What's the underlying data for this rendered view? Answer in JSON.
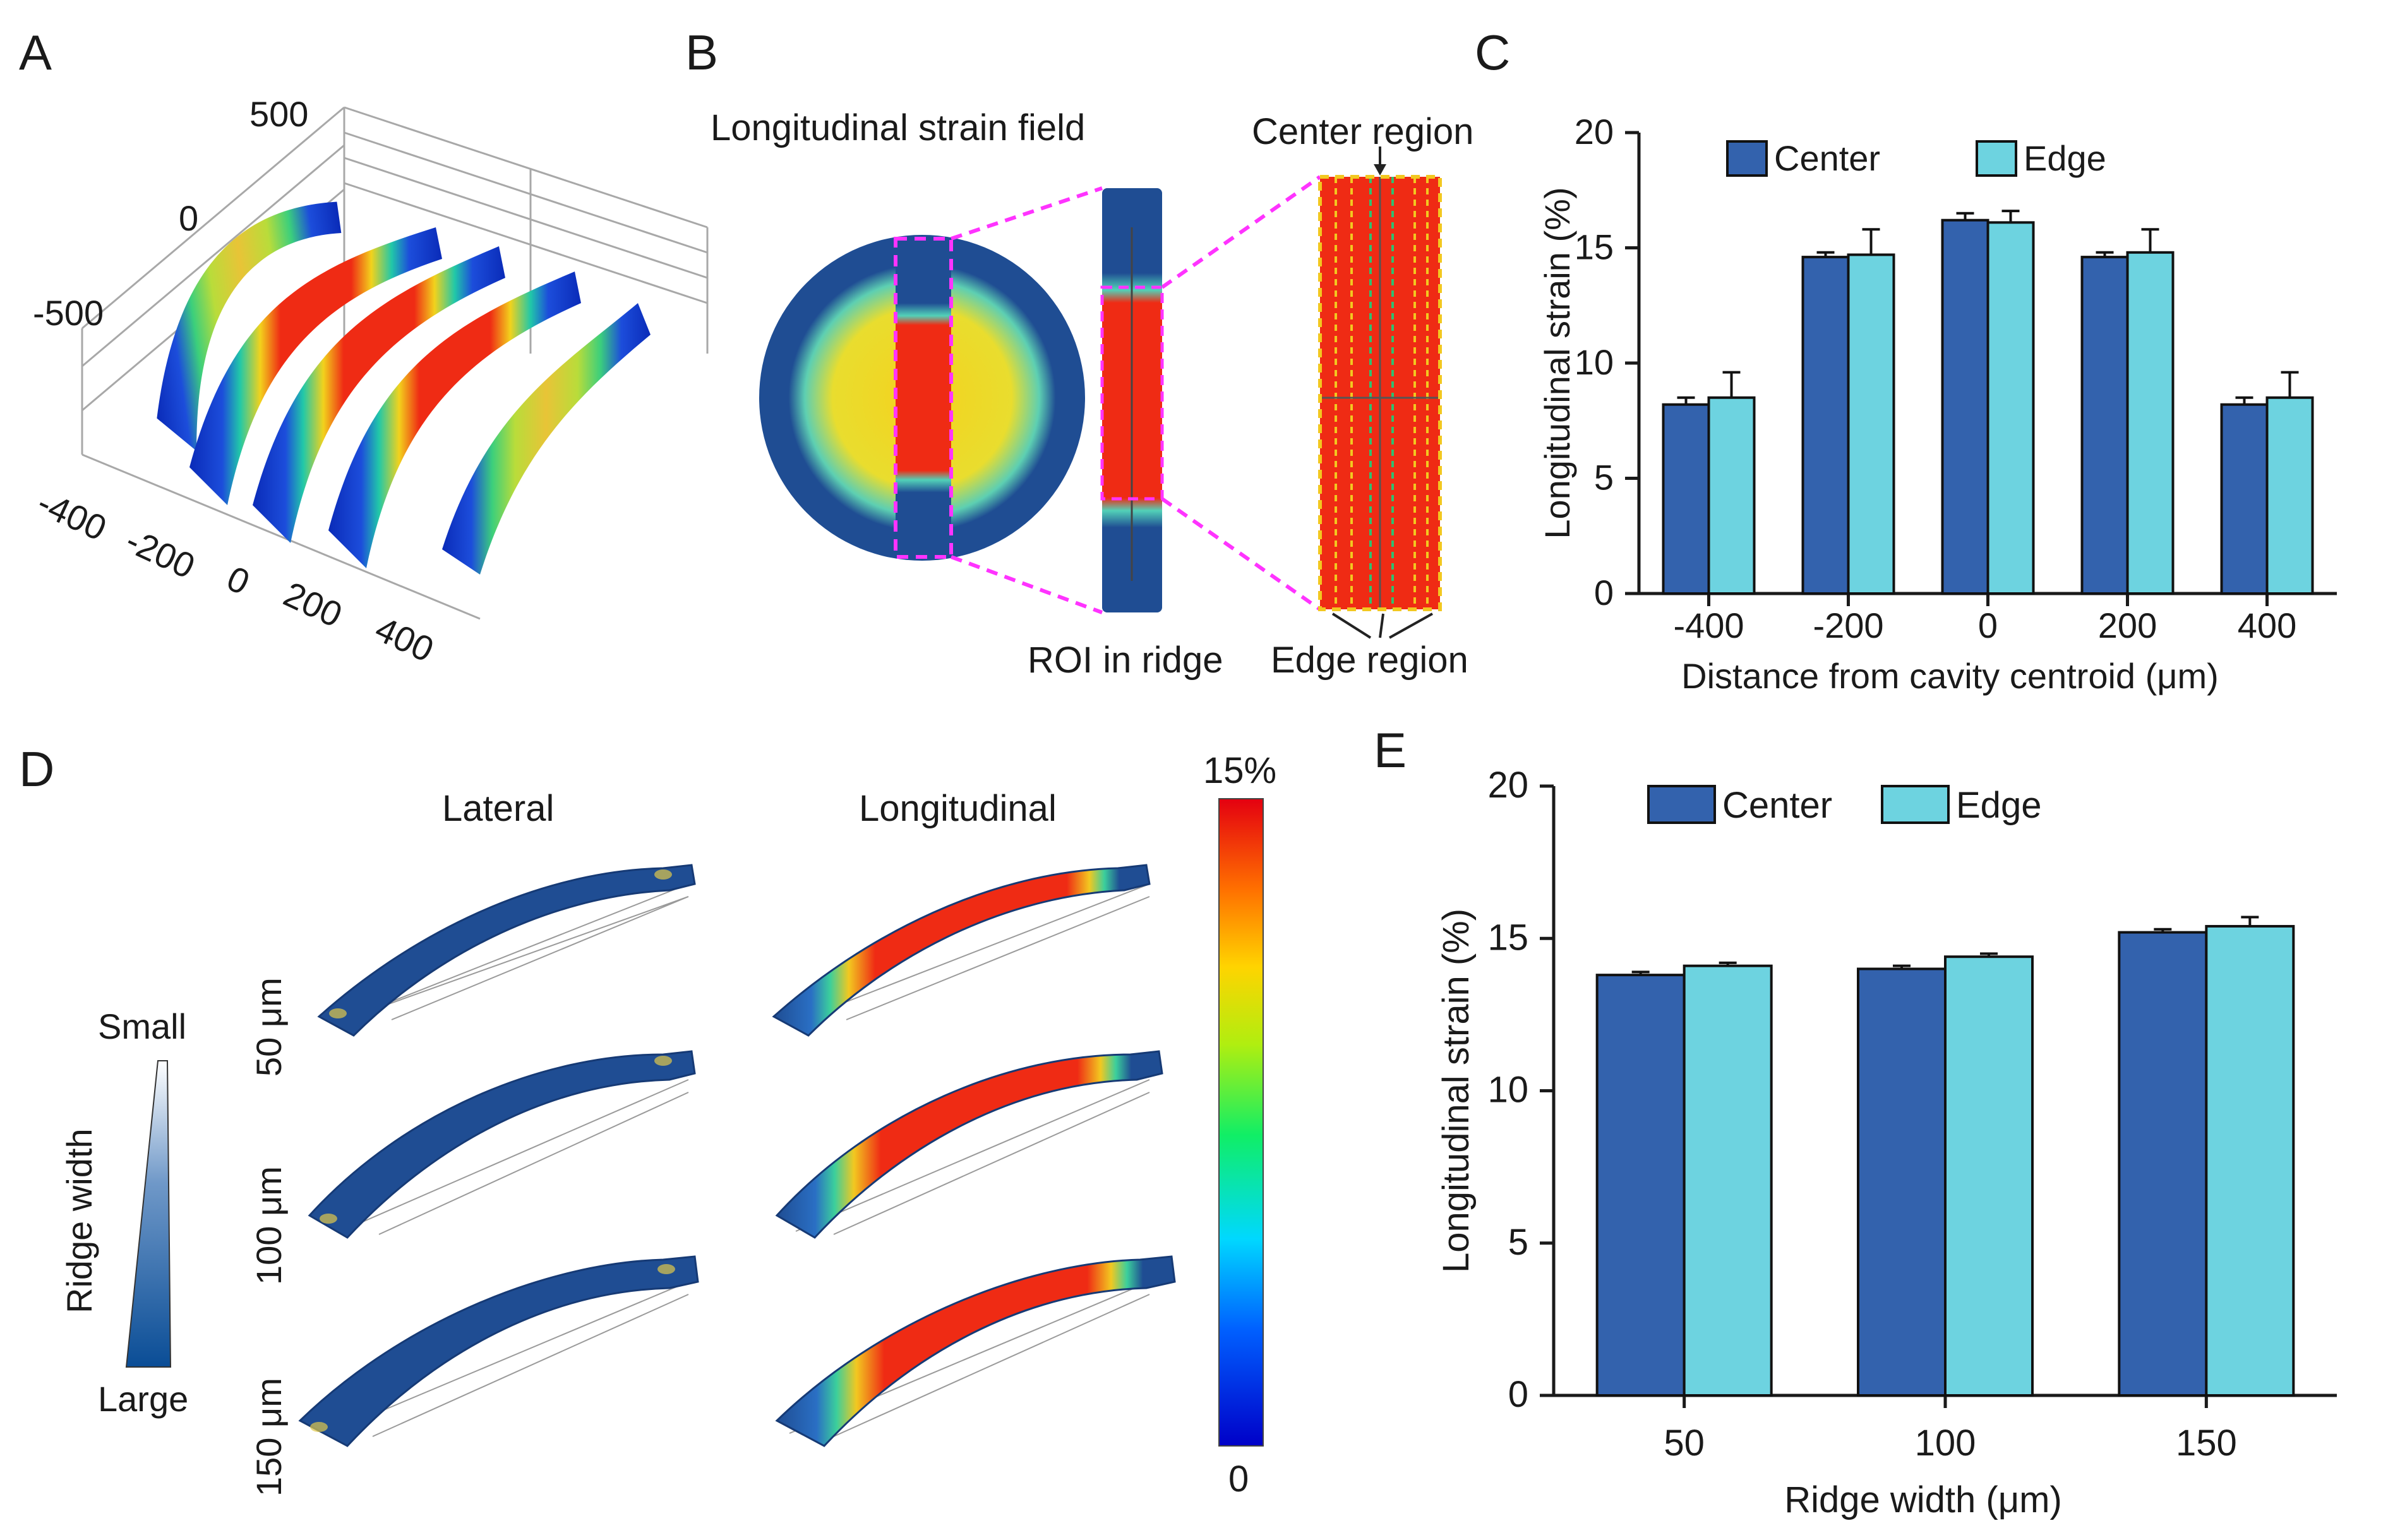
{
  "panels": {
    "a": {
      "label": "A",
      "zticks": [
        "500",
        "0",
        "-500"
      ],
      "xticks": [
        "-400",
        "-200",
        "0",
        "200",
        "400"
      ]
    },
    "b": {
      "label": "B",
      "title": "Longitudinal strain field",
      "center_region": "Center region",
      "roi": "ROI in ridge",
      "edge_region": "Edge region"
    },
    "c": {
      "label": "C"
    },
    "d": {
      "label": "D",
      "col_lateral": "Lateral",
      "col_longitudinal": "Longitudinal",
      "rows": [
        "50 μm",
        "100 μm",
        "150 μm"
      ],
      "ridge_width": "Ridge width",
      "small": "Small",
      "large": "Large",
      "cbar_max": "15%",
      "cbar_min": "0"
    },
    "e": {
      "label": "E"
    }
  },
  "colors": {
    "center": "#3362ad",
    "edge": "#6dd3e0",
    "magenta": "#ff33ff"
  },
  "chart_data": [
    {
      "id": "C",
      "type": "bar",
      "categories": [
        "-400",
        "-200",
        "0",
        "200",
        "400"
      ],
      "series": [
        {
          "name": "Center",
          "values": [
            8.2,
            14.6,
            16.2,
            14.6,
            8.2
          ],
          "errors": [
            0.3,
            0.2,
            0.3,
            0.2,
            0.3
          ]
        },
        {
          "name": "Edge",
          "values": [
            8.5,
            14.7,
            16.1,
            14.8,
            8.5
          ],
          "errors": [
            1.1,
            1.1,
            0.5,
            1.0,
            1.1
          ]
        }
      ],
      "xlabel": "Distance from cavity centroid  (μm)",
      "ylabel": "Longitudinal strain (%)",
      "ylim": [
        0,
        20
      ],
      "yticks": [
        "0",
        "5",
        "10",
        "15",
        "20"
      ]
    },
    {
      "id": "E",
      "type": "bar",
      "categories": [
        "50",
        "100",
        "150"
      ],
      "series": [
        {
          "name": "Center",
          "values": [
            13.8,
            14.0,
            15.2
          ],
          "errors": [
            0.1,
            0.1,
            0.1
          ]
        },
        {
          "name": "Edge",
          "values": [
            14.1,
            14.4,
            15.4
          ],
          "errors": [
            0.1,
            0.1,
            0.3
          ]
        }
      ],
      "xlabel": "Ridge width (μm)",
      "ylabel": "Longitudinal strain (%)",
      "ylim": [
        0,
        20
      ],
      "yticks": [
        "0",
        "5",
        "10",
        "15",
        "20"
      ]
    }
  ]
}
